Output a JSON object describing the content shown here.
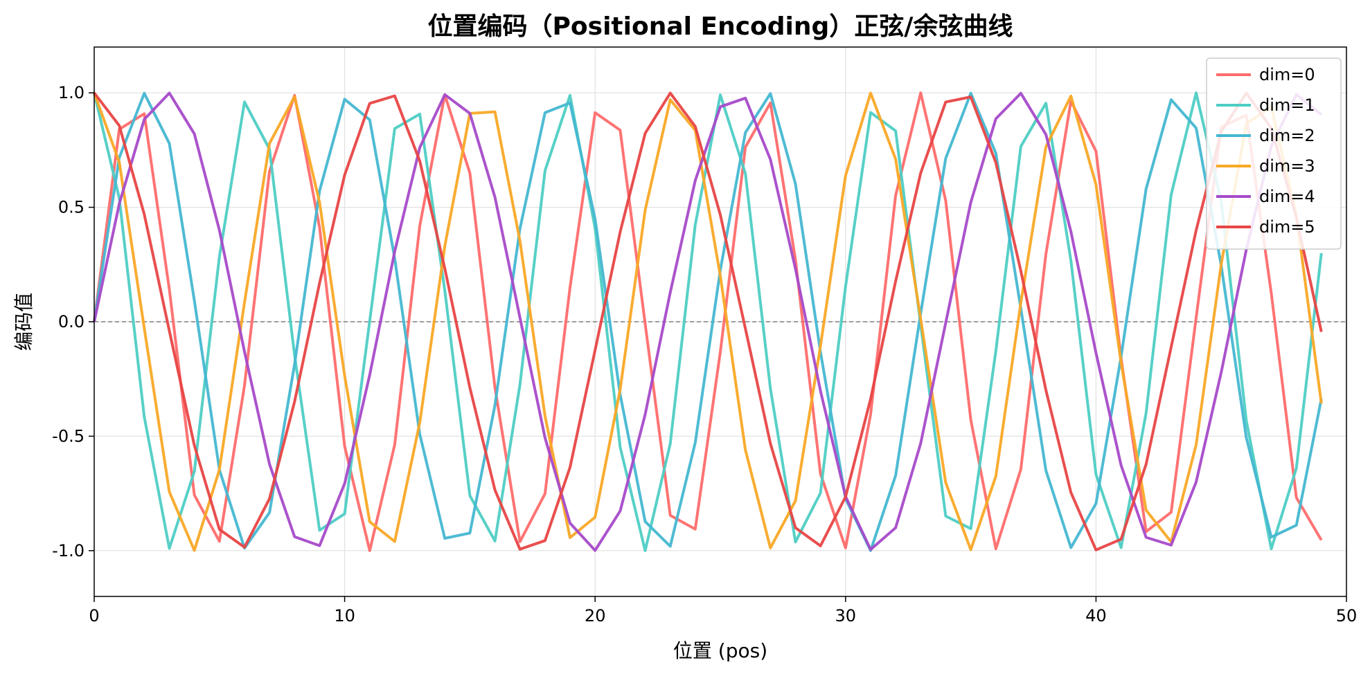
{
  "chart_data": {
    "type": "line",
    "title": "位置编码（Positional Encoding）正弦/余弦曲线",
    "xlabel": "位置 (pos)",
    "ylabel": "编码值",
    "xlim": [
      0,
      50
    ],
    "ylim": [
      -1.2,
      1.2
    ],
    "x_ticks": [
      0,
      10,
      20,
      30,
      40,
      50
    ],
    "x_tick_labels": [
      "0",
      "10",
      "20",
      "30",
      "40",
      "50"
    ],
    "y_ticks": [
      1.0,
      0.5,
      0.0,
      -0.5,
      -1.0
    ],
    "y_tick_labels": [
      "1.0",
      "0.5",
      "0.0",
      "-0.5",
      "-1.0"
    ],
    "grid": true,
    "reference_line": {
      "y": 0,
      "style": "dashed",
      "color": "#808080"
    },
    "legend_position": "top-right",
    "x": [
      0,
      1,
      2,
      3,
      4,
      5,
      6,
      7,
      8,
      9,
      10,
      11,
      12,
      13,
      14,
      15,
      16,
      17,
      18,
      19,
      20,
      21,
      22,
      23,
      24,
      25,
      26,
      27,
      28,
      29,
      30,
      31,
      32,
      33,
      34,
      35,
      36,
      37,
      38,
      39,
      40,
      41,
      42,
      43,
      44,
      45,
      46,
      47,
      48,
      49
    ],
    "series": [
      {
        "name": "dim=0",
        "color": "#ff6b6b",
        "values": [
          0.0,
          0.841,
          0.909,
          0.141,
          -0.757,
          -0.959,
          -0.279,
          0.657,
          0.989,
          0.412,
          -0.544,
          -1.0,
          -0.537,
          0.42,
          0.991,
          0.65,
          -0.288,
          -0.961,
          -0.751,
          0.15,
          0.913,
          0.837,
          -0.009,
          -0.846,
          -0.906,
          -0.132,
          0.763,
          0.956,
          0.271,
          -0.664,
          -0.988,
          -0.404,
          0.551,
          1.0,
          0.529,
          -0.428,
          -0.992,
          -0.644,
          0.296,
          0.964,
          0.745,
          -0.159,
          -0.917,
          -0.832,
          0.018,
          0.851,
          0.902,
          0.124,
          -0.768,
          -0.954
        ]
      },
      {
        "name": "dim=1",
        "color": "#4ecdc4",
        "values": [
          1.0,
          0.54,
          -0.416,
          -0.99,
          -0.654,
          0.284,
          0.96,
          0.754,
          -0.146,
          -0.911,
          -0.839,
          0.004,
          0.844,
          0.907,
          0.137,
          -0.76,
          -0.958,
          -0.275,
          0.66,
          0.989,
          0.408,
          -0.548,
          -1.0,
          -0.533,
          0.424,
          0.991,
          0.647,
          -0.292,
          -0.962,
          -0.748,
          0.154,
          0.914,
          0.834,
          -0.013,
          -0.849,
          -0.904,
          -0.128,
          0.766,
          0.955,
          0.267,
          -0.667,
          -0.987,
          -0.4,
          0.555,
          1.0,
          0.525,
          -0.432,
          -0.992,
          -0.64,
          0.3
        ]
      },
      {
        "name": "dim=2",
        "color": "#45b7d1",
        "values": [
          0.0,
          0.717,
          0.998,
          0.779,
          0.093,
          -0.647,
          -0.989,
          -0.834,
          -0.186,
          0.572,
          0.972,
          0.882,
          0.277,
          -0.492,
          -0.946,
          -0.923,
          -0.365,
          0.407,
          0.913,
          0.956,
          0.449,
          -0.318,
          -0.873,
          -0.981,
          -0.528,
          0.226,
          0.826,
          0.997,
          0.602,
          -0.132,
          -0.773,
          -1.0,
          -0.672,
          0.037,
          0.714,
          0.998,
          0.736,
          0.058,
          -0.65,
          -0.987,
          -0.794,
          -0.153,
          0.58,
          0.97,
          0.846,
          0.246,
          -0.506,
          -0.941,
          -0.889,
          -0.336
        ]
      },
      {
        "name": "dim=3",
        "color": "#f9a826",
        "values": [
          1.0,
          0.697,
          -0.028,
          -0.743,
          -0.999,
          -0.646,
          0.084,
          0.779,
          0.983,
          0.521,
          -0.236,
          -0.874,
          -0.96,
          -0.44,
          0.33,
          0.91,
          0.917,
          0.353,
          -0.412,
          -0.943,
          -0.854,
          -0.296,
          0.488,
          0.97,
          0.836,
          0.2,
          -0.56,
          -0.988,
          -0.782,
          -0.106,
          0.638,
          0.999,
          0.71,
          0.012,
          -0.703,
          -0.996,
          -0.675,
          0.083,
          0.764,
          0.986,
          0.599,
          -0.178,
          -0.823,
          -0.962,
          -0.537,
          0.252,
          0.865,
          0.939,
          0.463,
          -0.357
        ]
      },
      {
        "name": "dim=4",
        "color": "#a64ac9",
        "values": [
          0.0,
          0.515,
          0.884,
          0.999,
          0.821,
          0.4,
          -0.131,
          -0.622,
          -0.939,
          -0.978,
          -0.707,
          -0.232,
          0.307,
          0.761,
          0.992,
          0.91,
          0.544,
          0.018,
          -0.507,
          -0.88,
          -0.999,
          -0.827,
          -0.405,
          0.128,
          0.617,
          0.939,
          0.977,
          0.709,
          0.231,
          -0.302,
          -0.763,
          -0.995,
          -0.9,
          -0.531,
          -0.005,
          0.521,
          0.887,
          0.998,
          0.818,
          0.394,
          -0.136,
          -0.627,
          -0.942,
          -0.976,
          -0.7,
          -0.221,
          0.315,
          0.767,
          0.993,
          0.905
        ]
      },
      {
        "name": "dim=5",
        "color": "#e84545",
        "values": [
          1.0,
          0.857,
          0.469,
          -0.04,
          -0.54,
          -0.907,
          -0.985,
          -0.773,
          -0.349,
          0.169,
          0.641,
          0.954,
          0.987,
          0.702,
          0.233,
          -0.288,
          -0.735,
          -0.994,
          -0.956,
          -0.636,
          -0.124,
          0.392,
          0.823,
          0.999,
          0.853,
          0.467,
          -0.03,
          -0.532,
          -0.9,
          -0.979,
          -0.765,
          -0.337,
          0.177,
          0.65,
          0.96,
          0.982,
          0.695,
          0.222,
          -0.299,
          -0.746,
          -0.997,
          -0.95,
          -0.623,
          -0.111,
          0.4,
          0.83,
          0.999,
          0.846,
          0.455,
          -0.044
        ]
      }
    ]
  }
}
